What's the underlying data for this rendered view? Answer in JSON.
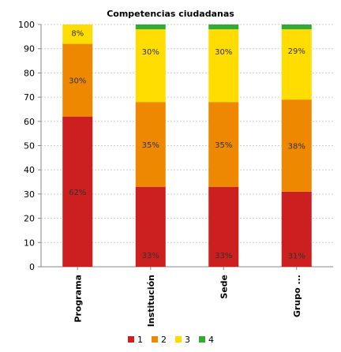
{
  "chart_data": {
    "type": "bar",
    "stacked": true,
    "title": "Competencias ciudadanas",
    "xlabel": "",
    "ylabel": "",
    "ylim": [
      0,
      100
    ],
    "yticks": [
      0,
      10,
      20,
      30,
      40,
      50,
      60,
      70,
      80,
      90,
      100
    ],
    "grid": true,
    "legend_position": "bottom",
    "categories": [
      "Programa",
      "Institución",
      "Sede",
      "Grupo ..."
    ],
    "series": [
      {
        "name": "1",
        "color": "#cc1f1f",
        "values": [
          62,
          33,
          33,
          31
        ],
        "labels": [
          "62%",
          "33%",
          "33%",
          "31%"
        ]
      },
      {
        "name": "2",
        "color": "#ee8800",
        "values": [
          30,
          35,
          35,
          38
        ],
        "labels": [
          "30%",
          "35%",
          "35%",
          "38%"
        ]
      },
      {
        "name": "3",
        "color": "#ffdd00",
        "values": [
          8,
          30,
          30,
          29
        ],
        "labels": [
          "8%",
          "30%",
          "30%",
          "29%"
        ]
      },
      {
        "name": "4",
        "color": "#33aa33",
        "values": [
          0,
          2,
          2,
          2
        ],
        "labels": [
          "",
          "",
          "",
          ""
        ]
      }
    ]
  }
}
